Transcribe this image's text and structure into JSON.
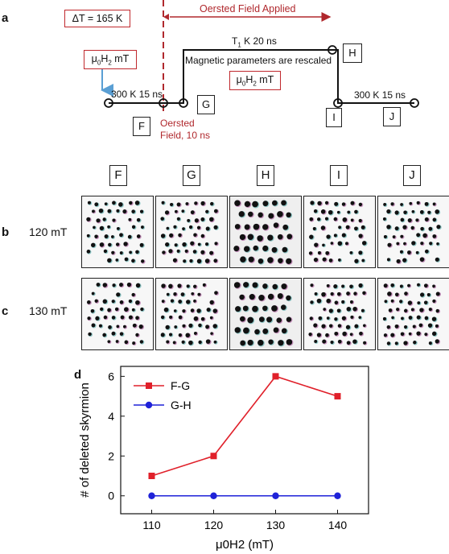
{
  "panel_a": {
    "letter": "a",
    "delta_t": "ΔT = 165 K",
    "field_box_left": "μ0H2 mT",
    "field_box_mid": "μ0H2 mT",
    "oersted_applied": "Oersted Field Applied",
    "stage1": "300 K 15 ns",
    "stage_t1": "T1 K 20 ns",
    "rescaled": "Magnetic parameters are rescaled",
    "stage_final": "300 K 15 ns",
    "oersted_note_line1": "Oersted",
    "oersted_note_line2": "Field, 10 ns",
    "points": [
      "F",
      "G",
      "H",
      "I",
      "J"
    ]
  },
  "panel_bc": {
    "columns": [
      "F",
      "G",
      "H",
      "I",
      "J"
    ],
    "rows": [
      {
        "letter": "b",
        "label": "120 mT"
      },
      {
        "letter": "c",
        "label": "130 mT"
      }
    ]
  },
  "chart_data": {
    "type": "line",
    "panel_letter": "d",
    "x": [
      110,
      120,
      130,
      140
    ],
    "series": [
      {
        "name": "F-G",
        "values": [
          1,
          2,
          6,
          5
        ],
        "color": "#e0202a",
        "marker": "square"
      },
      {
        "name": "G-H",
        "values": [
          0,
          0,
          0,
          0
        ],
        "color": "#1f22d8",
        "marker": "circle"
      }
    ],
    "xlabel": "μ0H2 (mT)",
    "ylabel": "# of deleted skyrmion",
    "xlim": [
      105,
      145
    ],
    "ylim": [
      -0.9,
      6.5
    ],
    "xticks": [
      110,
      120,
      130,
      140
    ],
    "yticks": [
      0,
      2,
      4,
      6
    ],
    "legend_position": "top-left",
    "grid": false
  }
}
